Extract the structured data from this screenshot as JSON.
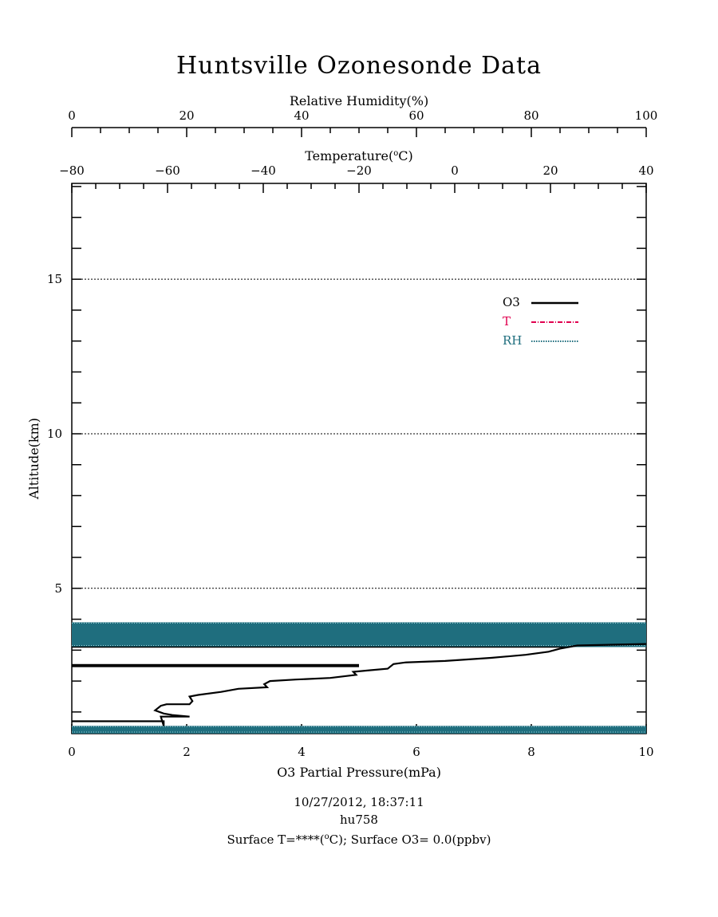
{
  "chart_data": {
    "type": "line",
    "title": "Huntsville Ozonesonde Data",
    "axes": {
      "o3": {
        "label": "O3 Partial Pressure(mPa)",
        "range": [
          0,
          10
        ],
        "ticks": [
          0,
          2,
          4,
          6,
          8,
          10
        ]
      },
      "rh": {
        "label": "Relative Humidity(%)",
        "range": [
          0,
          100
        ],
        "ticks": [
          0,
          20,
          40,
          60,
          80,
          100
        ]
      },
      "temperature": {
        "label_main": "Temperature(",
        "label_sup": "o",
        "label_end": "C)",
        "range": [
          -80,
          40
        ],
        "ticks": [
          -80,
          -60,
          -40,
          -20,
          0,
          20,
          40
        ]
      },
      "altitude": {
        "label": "Altitude(km)",
        "range": [
          0.3,
          18.1
        ],
        "ticks": [
          5,
          10,
          15
        ],
        "minor_step": 1
      }
    },
    "gridlines_km": [
      5,
      10,
      15
    ],
    "legend": {
      "placement": "top-right",
      "entries": [
        {
          "label": "O3",
          "color": "#000000",
          "style": "solid"
        },
        {
          "label": "T",
          "color": "#e0004e",
          "style": "dash-dot"
        },
        {
          "label": "RH",
          "color": "#1f6e7e",
          "style": "dotted"
        }
      ]
    },
    "series": [
      {
        "name": "O3",
        "color": "#000000",
        "points": [
          [
            0,
            0.7
          ],
          [
            1.6,
            0.7
          ],
          [
            1.6,
            0.55
          ],
          [
            1.55,
            0.85
          ],
          [
            2.05,
            0.85
          ],
          [
            1.75,
            0.9
          ],
          [
            1.6,
            0.95
          ],
          [
            1.45,
            1.05
          ],
          [
            1.55,
            1.2
          ],
          [
            1.65,
            1.25
          ],
          [
            2.05,
            1.25
          ],
          [
            2.1,
            1.35
          ],
          [
            2.05,
            1.5
          ],
          [
            2.2,
            1.55
          ],
          [
            2.6,
            1.65
          ],
          [
            2.9,
            1.75
          ],
          [
            3.4,
            1.8
          ],
          [
            3.35,
            1.9
          ],
          [
            3.45,
            2.0
          ],
          [
            3.9,
            2.05
          ],
          [
            4.5,
            2.1
          ],
          [
            4.95,
            2.2
          ],
          [
            4.9,
            2.3
          ],
          [
            5.2,
            2.35
          ],
          [
            5.5,
            2.4
          ],
          [
            5.6,
            2.55
          ],
          [
            5.8,
            2.6
          ],
          [
            6.5,
            2.65
          ],
          [
            7.3,
            2.75
          ],
          [
            7.9,
            2.85
          ],
          [
            8.3,
            2.95
          ],
          [
            8.5,
            3.05
          ],
          [
            8.8,
            3.15
          ],
          [
            10,
            3.2
          ]
        ]
      },
      {
        "name": "RH",
        "color": "#1f6e7e",
        "bands_km": [
          [
            0.3,
            0.55
          ],
          [
            3.1,
            3.9
          ]
        ]
      }
    ],
    "o3_thick_band_km": [
      2.45,
      2.55
    ],
    "top_line_km": 3.1
  },
  "footer": {
    "line1": "10/27/2012, 18:37:11",
    "line2": "hu758",
    "line3_a": "Surface T=****(",
    "line3_sup": "o",
    "line3_b": "C); Surface O3= 0.0(ppbv)"
  },
  "colors": {
    "ozone": "#000000",
    "temperature": "#e0004e",
    "humidity": "#1f6e7e"
  }
}
